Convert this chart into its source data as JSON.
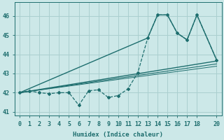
{
  "xlabel": "Humidex (Indice chaleur)",
  "xlim": [
    -0.5,
    20.5
  ],
  "ylim": [
    40.8,
    46.7
  ],
  "yticks": [
    41,
    42,
    43,
    44,
    45,
    46
  ],
  "xticks": [
    0,
    1,
    2,
    3,
    4,
    5,
    6,
    7,
    8,
    9,
    10,
    11,
    12,
    13,
    14,
    15,
    16,
    17,
    18,
    20
  ],
  "bg_color": "#cce8e8",
  "grid_color": "#aacfcf",
  "line_color": "#1e6e6e",
  "jagged_x": [
    0,
    1,
    2,
    3,
    4,
    5,
    6,
    7,
    8,
    9,
    10,
    11,
    12,
    13,
    14,
    15,
    16,
    17,
    18,
    20
  ],
  "jagged_y": [
    42.0,
    42.1,
    42.0,
    41.95,
    42.0,
    42.0,
    41.35,
    42.1,
    42.15,
    41.75,
    41.85,
    42.2,
    43.05,
    44.85,
    46.05,
    46.05,
    45.1,
    44.75,
    46.05,
    43.7
  ],
  "trend1_x": [
    0,
    13,
    14,
    15,
    16,
    17,
    18,
    20
  ],
  "trend1_y": [
    42.0,
    44.85,
    46.05,
    46.05,
    45.1,
    44.75,
    46.05,
    43.7
  ],
  "trend2_x": [
    0,
    20
  ],
  "trend2_y": [
    42.0,
    43.65
  ],
  "trend3_x": [
    0,
    20
  ],
  "trend3_y": [
    42.0,
    43.5
  ],
  "trend4_x": [
    0,
    20
  ],
  "trend4_y": [
    42.0,
    43.38
  ]
}
